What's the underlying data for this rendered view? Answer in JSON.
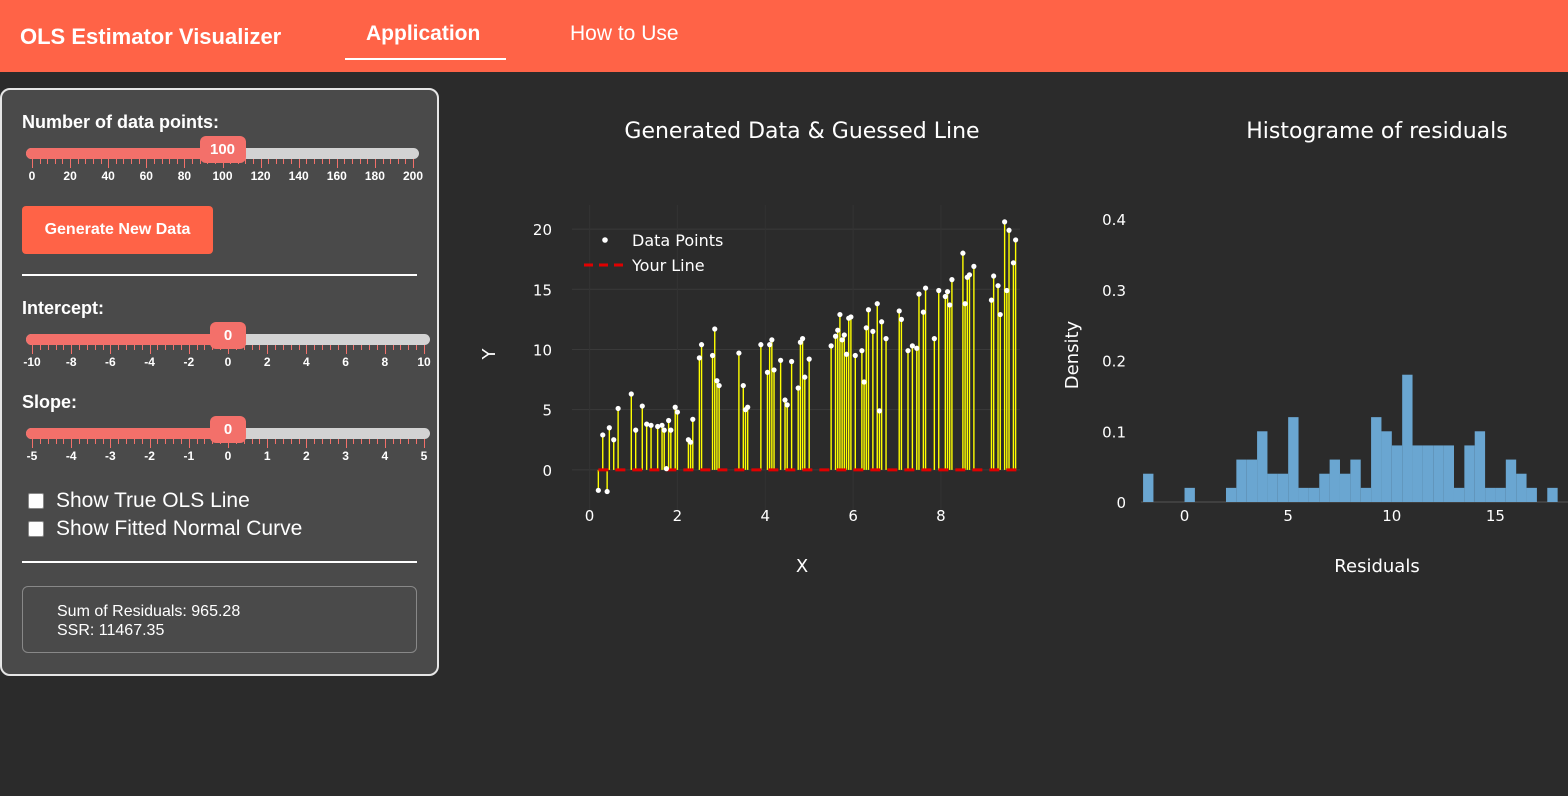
{
  "app": {
    "brand": "OLS Estimator Visualizer",
    "tabs": [
      {
        "label": "Application",
        "active": true
      },
      {
        "label": "How to Use",
        "active": false
      }
    ],
    "accent_color": "#ff6347"
  },
  "sidebar": {
    "n_points": {
      "label": "Number of data points:",
      "value": "100",
      "value_num": 100,
      "min": 0,
      "max": 200,
      "ticks": [
        "0",
        "20",
        "40",
        "60",
        "80",
        "100",
        "120",
        "140",
        "160",
        "180",
        "200"
      ]
    },
    "generate_button": "Generate New Data",
    "intercept": {
      "label": "Intercept:",
      "value": "0",
      "value_num": 0,
      "min": -10,
      "max": 10,
      "ticks": [
        "-10",
        "-8",
        "-6",
        "-4",
        "-2",
        "0",
        "2",
        "4",
        "6",
        "8",
        "10"
      ]
    },
    "slope": {
      "label": "Slope:",
      "value": "0",
      "value_num": 0,
      "min": -5,
      "max": 5,
      "ticks": [
        "-5",
        "-4",
        "-3",
        "-2",
        "-1",
        "0",
        "1",
        "2",
        "3",
        "4",
        "5"
      ]
    },
    "checkboxes": [
      {
        "label": "Show True OLS Line",
        "checked": false
      },
      {
        "label": "Show Fitted Normal Curve",
        "checked": false
      }
    ],
    "stats": {
      "sum_residuals": "Sum of Residuals: 965.28",
      "ssr": "SSR: 11467.35"
    }
  },
  "chart_data": [
    {
      "type": "scatter",
      "title": "Generated Data & Guessed Line",
      "xlabel": "X",
      "ylabel": "Y",
      "xlim": [
        -0.4,
        9.8
      ],
      "ylim": [
        -3.5,
        22
      ],
      "x_ticks": [
        "0",
        "2",
        "4",
        "6",
        "8"
      ],
      "y_ticks": [
        "0",
        "5",
        "10",
        "15",
        "20"
      ],
      "legend": {
        "position": "top-left",
        "items": [
          "Data Points",
          "Your Line"
        ]
      },
      "series": [
        {
          "name": "Data Points",
          "color": "#ffffff",
          "marker": "dot"
        },
        {
          "name": "Your Line",
          "color": "#e00000",
          "style": "dashed",
          "intercept": 0,
          "slope": 0
        },
        {
          "color": "#ffff00",
          "style": "residual segments"
        }
      ],
      "x": [
        0.2,
        0.3,
        0.4,
        0.45,
        0.55,
        0.65,
        0.95,
        1.05,
        1.2,
        1.3,
        1.4,
        1.55,
        1.65,
        1.7,
        1.75,
        1.8,
        1.85,
        1.95,
        2.0,
        2.25,
        2.3,
        2.35,
        2.5,
        2.55,
        2.8,
        2.85,
        2.9,
        2.95,
        3.4,
        3.5,
        3.55,
        3.6,
        3.9,
        4.05,
        4.1,
        4.15,
        4.2,
        4.35,
        4.45,
        4.5,
        4.6,
        4.75,
        4.8,
        4.85,
        4.9,
        5.0,
        5.5,
        5.6,
        5.65,
        5.7,
        5.75,
        5.8,
        5.85,
        5.9,
        5.95,
        6.05,
        6.2,
        6.25,
        6.3,
        6.35,
        6.45,
        6.55,
        6.6,
        6.65,
        6.75,
        7.05,
        7.1,
        7.25,
        7.35,
        7.45,
        7.5,
        7.6,
        7.65,
        7.85,
        7.95,
        8.1,
        8.15,
        8.2,
        8.25,
        8.5,
        8.55,
        8.6,
        8.65,
        8.75,
        9.15,
        9.2,
        9.3,
        9.35,
        9.45,
        9.5,
        9.55,
        9.65,
        9.7
      ],
      "y": [
        -1.7,
        2.9,
        -1.8,
        3.5,
        2.5,
        5.1,
        6.3,
        3.3,
        5.3,
        3.8,
        3.7,
        3.6,
        3.7,
        3.3,
        0.1,
        4.1,
        3.3,
        5.2,
        4.8,
        2.5,
        2.3,
        4.2,
        9.3,
        10.4,
        9.5,
        11.7,
        7.4,
        7.0,
        9.7,
        7.0,
        5.0,
        5.2,
        10.4,
        8.1,
        10.4,
        10.8,
        8.3,
        9.1,
        5.8,
        5.4,
        9.0,
        6.8,
        10.6,
        10.9,
        7.7,
        9.2,
        10.3,
        11.1,
        11.6,
        12.9,
        10.8,
        11.2,
        9.6,
        12.6,
        12.7,
        9.5,
        9.9,
        7.3,
        11.8,
        13.3,
        11.5,
        13.8,
        4.9,
        12.3,
        10.9,
        13.2,
        12.5,
        9.9,
        10.3,
        10.1,
        14.6,
        13.1,
        15.1,
        10.9,
        14.9,
        14.4,
        14.8,
        13.7,
        15.8,
        18.0,
        13.8,
        16.0,
        16.2,
        16.9,
        14.1,
        16.1,
        15.3,
        12.9,
        20.6,
        14.9,
        19.9,
        17.2,
        19.1
      ]
    },
    {
      "type": "bar",
      "title": "Histograme of residuals",
      "xlabel": "Residuals",
      "ylabel": "Density",
      "xlim": [
        -2.1,
        18.5
      ],
      "ylim": [
        0,
        0.42
      ],
      "x_ticks": [
        "0",
        "5",
        "10",
        "15"
      ],
      "y_ticks": [
        "0",
        "0.1",
        "0.2",
        "0.3",
        "0.4"
      ],
      "bar_color": "#6aa6d1",
      "bins": [
        {
          "x0": -2,
          "x1": -1.5,
          "v": 0.04
        },
        {
          "x0": -1.5,
          "x1": -1,
          "v": 0
        },
        {
          "x0": -1,
          "x1": -0.5,
          "v": 0
        },
        {
          "x0": -0.5,
          "x1": 0,
          "v": 0
        },
        {
          "x0": 0,
          "x1": 0.5,
          "v": 0.02
        },
        {
          "x0": 0.5,
          "x1": 1,
          "v": 0
        },
        {
          "x0": 1,
          "x1": 1.5,
          "v": 0
        },
        {
          "x0": 1.5,
          "x1": 2,
          "v": 0
        },
        {
          "x0": 2,
          "x1": 2.5,
          "v": 0.02
        },
        {
          "x0": 2.5,
          "x1": 3,
          "v": 0.06
        },
        {
          "x0": 3,
          "x1": 3.5,
          "v": 0.06
        },
        {
          "x0": 3.5,
          "x1": 4,
          "v": 0.1
        },
        {
          "x0": 4,
          "x1": 4.5,
          "v": 0.04
        },
        {
          "x0": 4.5,
          "x1": 5,
          "v": 0.04
        },
        {
          "x0": 5,
          "x1": 5.5,
          "v": 0.12
        },
        {
          "x0": 5.5,
          "x1": 6,
          "v": 0.02
        },
        {
          "x0": 6,
          "x1": 6.5,
          "v": 0.02
        },
        {
          "x0": 6.5,
          "x1": 7,
          "v": 0.04
        },
        {
          "x0": 7,
          "x1": 7.5,
          "v": 0.06
        },
        {
          "x0": 7.5,
          "x1": 8,
          "v": 0.04
        },
        {
          "x0": 8,
          "x1": 8.5,
          "v": 0.06
        },
        {
          "x0": 8.5,
          "x1": 9,
          "v": 0.02
        },
        {
          "x0": 9,
          "x1": 9.5,
          "v": 0.12
        },
        {
          "x0": 9.5,
          "x1": 10,
          "v": 0.1
        },
        {
          "x0": 10,
          "x1": 10.5,
          "v": 0.08
        },
        {
          "x0": 10.5,
          "x1": 11,
          "v": 0.18
        },
        {
          "x0": 11,
          "x1": 11.5,
          "v": 0.08
        },
        {
          "x0": 11.5,
          "x1": 12,
          "v": 0.08
        },
        {
          "x0": 12,
          "x1": 12.5,
          "v": 0.08
        },
        {
          "x0": 12.5,
          "x1": 13,
          "v": 0.08
        },
        {
          "x0": 13,
          "x1": 13.5,
          "v": 0.02
        },
        {
          "x0": 13.5,
          "x1": 14,
          "v": 0.08
        },
        {
          "x0": 14,
          "x1": 14.5,
          "v": 0.1
        },
        {
          "x0": 14.5,
          "x1": 15,
          "v": 0.02
        },
        {
          "x0": 15,
          "x1": 15.5,
          "v": 0.02
        },
        {
          "x0": 15.5,
          "x1": 16,
          "v": 0.06
        },
        {
          "x0": 16,
          "x1": 16.5,
          "v": 0.04
        },
        {
          "x0": 16.5,
          "x1": 17,
          "v": 0.02
        },
        {
          "x0": 17,
          "x1": 17.5,
          "v": 0
        },
        {
          "x0": 17.5,
          "x1": 18,
          "v": 0.02
        }
      ]
    }
  ]
}
